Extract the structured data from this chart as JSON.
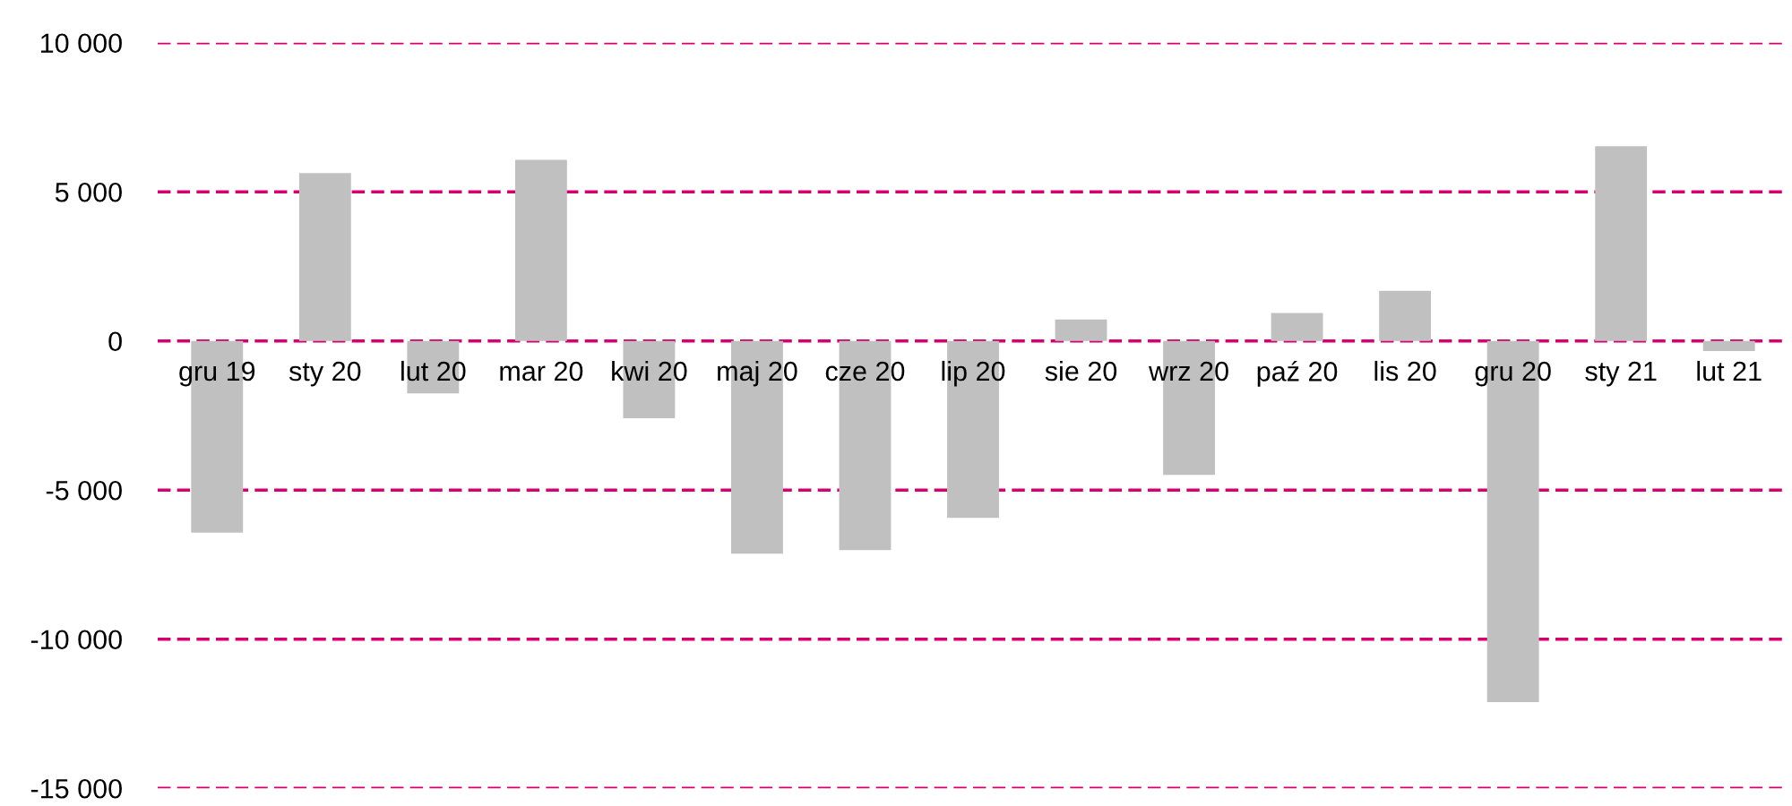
{
  "chart_data": {
    "type": "bar",
    "categories": [
      "gru 19",
      "sty 20",
      "lut 20",
      "mar 20",
      "kwi 20",
      "maj 20",
      "cze 20",
      "lip 20",
      "sie 20",
      "wrz 20",
      "paź 20",
      "lis 20",
      "gru 20",
      "sty 21",
      "lut 21"
    ],
    "series": [
      {
        "color": "#c0c0c0",
        "values": [
          -6430,
          5630,
          -1760,
          6070,
          -2590,
          -7130,
          -7010,
          -5930,
          720,
          -4490,
          940,
          1680,
          -12110,
          6530,
          -340
        ]
      }
    ],
    "ylim": [
      -15000,
      10000
    ],
    "yticks": [
      {
        "value": -15000,
        "label": "-15 000"
      },
      {
        "value": -10000,
        "label": "-10 000"
      },
      {
        "value": -5000,
        "label": "-5 000"
      },
      0,
      {
        "value": 5000,
        "label": "5 000"
      },
      {
        "value": 10000,
        "label": "10 000"
      }
    ],
    "grid": "y",
    "legend": false
  }
}
